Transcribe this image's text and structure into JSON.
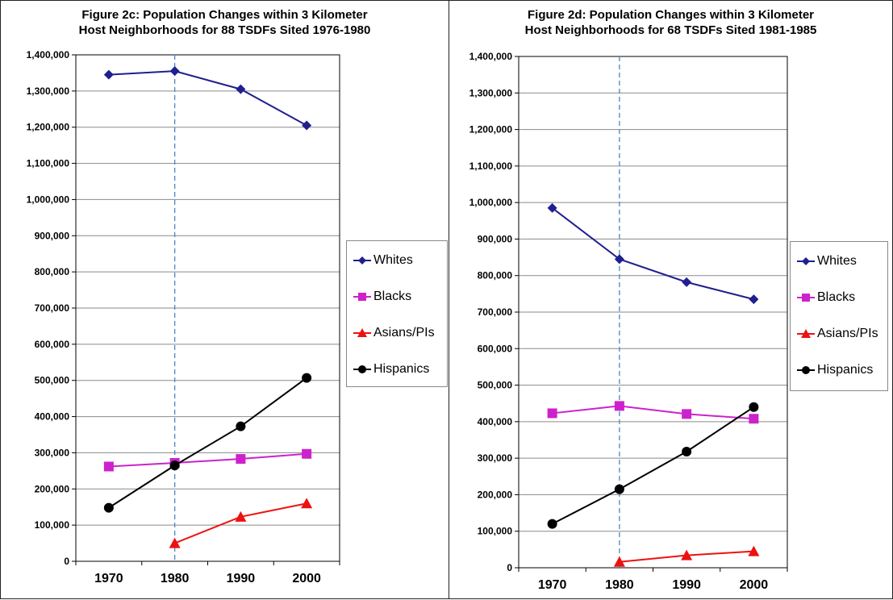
{
  "chart_data": [
    {
      "type": "line",
      "title": "Figure 2c: Population Changes within 3 Kilometer\nHost Neighborhoods for 88 TSDFs Sited 1976-1980",
      "categories": [
        "1970",
        "1980",
        "1990",
        "2000"
      ],
      "ylim": [
        0,
        1400000
      ],
      "ytick_step": 100000,
      "grid": true,
      "legend_position": "right",
      "reference_line_x": "1980",
      "series": [
        {
          "name": "Whites",
          "color": "#1f1f8f",
          "marker": "diamond",
          "values": [
            1345000,
            1355000,
            1305000,
            1205000
          ]
        },
        {
          "name": "Blacks",
          "color": "#cc22cc",
          "marker": "square",
          "values": [
            262000,
            272000,
            283000,
            297000
          ]
        },
        {
          "name": "Asians/PIs",
          "color": "#ee1111",
          "marker": "triangle",
          "values": [
            null,
            50000,
            123000,
            160000
          ]
        },
        {
          "name": "Hispanics",
          "color": "#000000",
          "marker": "circle",
          "values": [
            148000,
            265000,
            373000,
            507000
          ]
        }
      ]
    },
    {
      "type": "line",
      "title": "Figure 2d: Population Changes within 3 Kilometer\nHost Neighborhoods for 68 TSDFs Sited 1981-1985",
      "categories": [
        "1970",
        "1980",
        "1990",
        "2000"
      ],
      "ylim": [
        0,
        1400000
      ],
      "ytick_step": 100000,
      "grid": true,
      "legend_position": "right",
      "reference_line_x": "1980",
      "series": [
        {
          "name": "Whites",
          "color": "#1f1f8f",
          "marker": "diamond",
          "values": [
            985000,
            845000,
            782000,
            735000
          ]
        },
        {
          "name": "Blacks",
          "color": "#cc22cc",
          "marker": "square",
          "values": [
            423000,
            443000,
            421000,
            408000
          ]
        },
        {
          "name": "Asians/PIs",
          "color": "#ee1111",
          "marker": "triangle",
          "values": [
            null,
            16000,
            34000,
            45000
          ]
        },
        {
          "name": "Hispanics",
          "color": "#000000",
          "marker": "circle",
          "values": [
            120000,
            215000,
            318000,
            440000
          ]
        }
      ]
    }
  ]
}
